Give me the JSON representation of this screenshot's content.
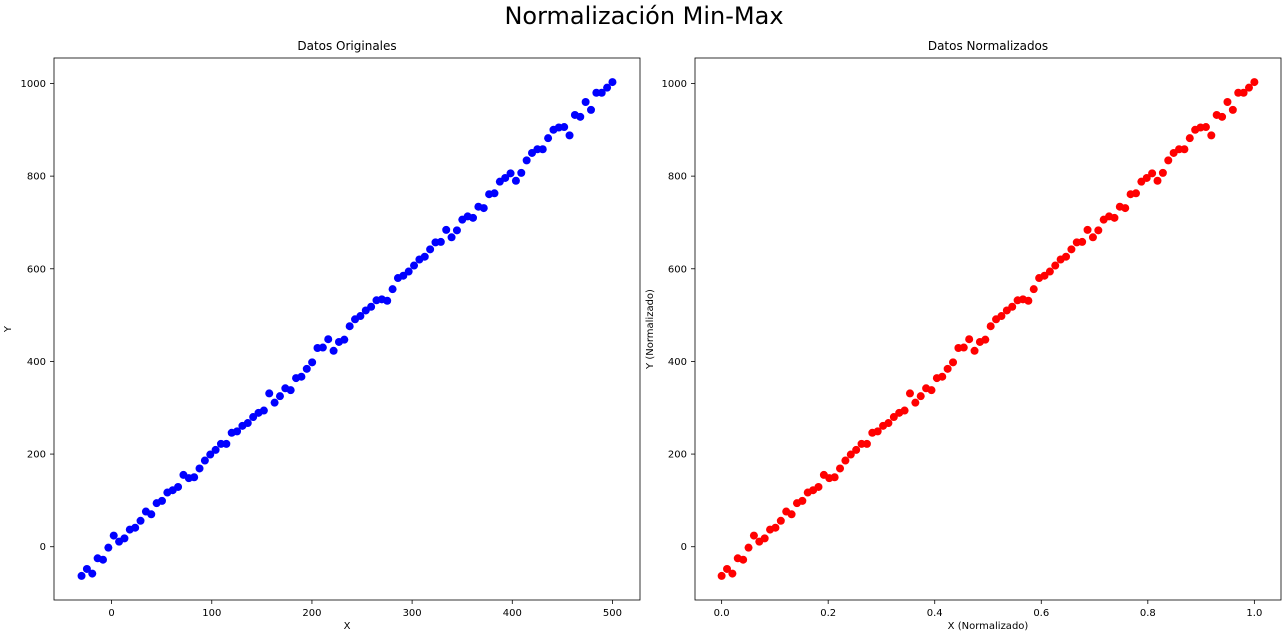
{
  "figure": {
    "suptitle": "Normalización Min-Max"
  },
  "chart_data": [
    {
      "type": "scatter",
      "title": "Datos Originales",
      "xlabel": "X",
      "ylabel": "Y",
      "xlim": [
        -57.5,
        527.5
      ],
      "ylim": [
        -115,
        1055
      ],
      "xticks": [
        0,
        100,
        200,
        300,
        400,
        500
      ],
      "yticks": [
        0,
        200,
        400,
        600,
        800,
        1000
      ],
      "color": "#0000ff",
      "x_start": -30,
      "x_end": 500,
      "y": [
        -63,
        -48,
        -58,
        -25,
        -28,
        -2,
        24,
        11,
        18,
        37,
        41,
        56,
        76,
        70,
        94,
        99,
        117,
        122,
        129,
        155,
        148,
        150,
        169,
        186,
        199,
        209,
        222,
        222,
        246,
        249,
        261,
        267,
        280,
        289,
        294,
        331,
        311,
        325,
        342,
        338,
        364,
        367,
        384,
        398,
        429,
        430,
        448,
        423,
        442,
        447,
        476,
        491,
        498,
        510,
        518,
        532,
        534,
        531,
        556,
        580,
        585,
        594,
        607,
        620,
        626,
        642,
        657,
        658,
        684,
        668,
        683,
        706,
        713,
        710,
        734,
        731,
        761,
        763,
        788,
        796,
        806,
        790,
        807,
        834,
        850,
        858,
        858,
        882,
        900,
        905,
        906,
        888,
        932,
        928,
        960,
        943,
        980,
        980,
        991,
        1003
      ]
    },
    {
      "type": "scatter",
      "title": "Datos Normalizados",
      "xlabel": "X (Normalizado)",
      "ylabel": "Y (Normalizado)",
      "xlim": [
        -0.05,
        1.05
      ],
      "ylim": [
        -115,
        1055
      ],
      "xticks": [
        0.0,
        0.2,
        0.4,
        0.6,
        0.8,
        1.0
      ],
      "yticks": [
        0,
        200,
        400,
        600,
        800,
        1000
      ],
      "color": "#ff0000",
      "x_start": 0,
      "x_end": 1,
      "y": [
        -63,
        -48,
        -58,
        -25,
        -28,
        -2,
        24,
        11,
        18,
        37,
        41,
        56,
        76,
        70,
        94,
        99,
        117,
        122,
        129,
        155,
        148,
        150,
        169,
        186,
        199,
        209,
        222,
        222,
        246,
        249,
        261,
        267,
        280,
        289,
        294,
        331,
        311,
        325,
        342,
        338,
        364,
        367,
        384,
        398,
        429,
        430,
        448,
        423,
        442,
        447,
        476,
        491,
        498,
        510,
        518,
        532,
        534,
        531,
        556,
        580,
        585,
        594,
        607,
        620,
        626,
        642,
        657,
        658,
        684,
        668,
        683,
        706,
        713,
        710,
        734,
        731,
        761,
        763,
        788,
        796,
        806,
        790,
        807,
        834,
        850,
        858,
        858,
        882,
        900,
        905,
        906,
        888,
        932,
        928,
        960,
        943,
        980,
        980,
        991,
        1003
      ]
    }
  ]
}
